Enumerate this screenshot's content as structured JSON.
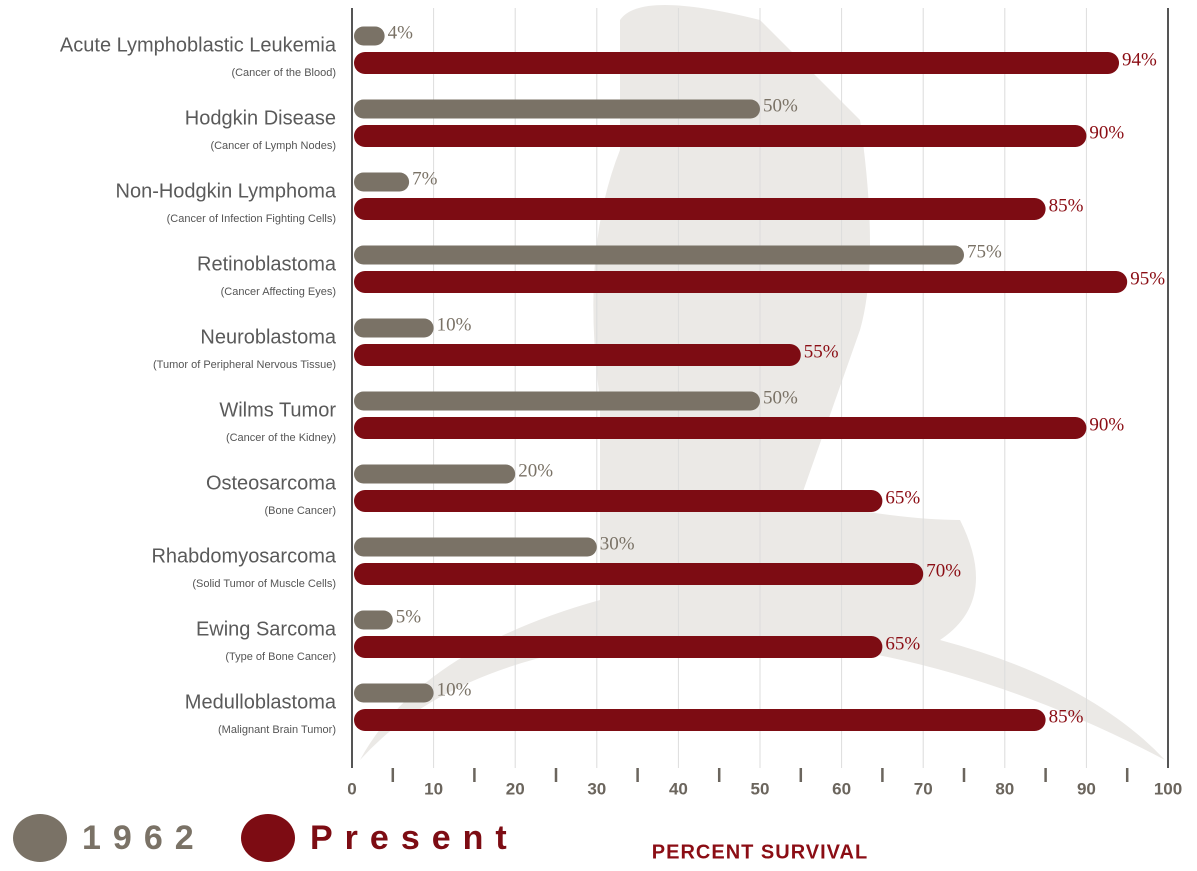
{
  "chart_data": {
    "type": "bar",
    "orientation": "horizontal",
    "xlabel": "PERCENT SURVIVAL",
    "categories": [
      "Acute Lymphoblastic Leukemia",
      "Hodgkin Disease",
      "Non-Hodgkin Lymphoma",
      "Retinoblastoma",
      "Neuroblastoma",
      "Wilms Tumor",
      "Osteosarcoma",
      "Rhabdomyosarcoma",
      "Ewing Sarcoma",
      "Medulloblastoma"
    ],
    "subtitles": [
      "(Cancer of the Blood)",
      "(Cancer of Lymph Nodes)",
      "(Cancer of Infection Fighting Cells)",
      "(Cancer Affecting Eyes)",
      "(Tumor of Peripheral Nervous Tissue)",
      "(Cancer of the Kidney)",
      "(Bone Cancer)",
      "(Solid Tumor of Muscle Cells)",
      "(Type of Bone Cancer)",
      "(Malignant Brain Tumor)"
    ],
    "series": [
      {
        "name": "1962",
        "color": "#7a7266",
        "values": [
          4,
          50,
          7,
          75,
          10,
          50,
          20,
          30,
          5,
          10
        ],
        "value_labels": [
          "4%",
          "50%",
          "7%",
          "75%",
          "10%",
          "50%",
          "20%",
          "30%",
          "5%",
          "10%"
        ]
      },
      {
        "name": "Present",
        "color": "#7d0c13",
        "values": [
          94,
          90,
          85,
          95,
          55,
          90,
          65,
          70,
          65,
          85
        ],
        "value_labels": [
          "94%",
          "90%",
          "85%",
          "95%",
          "55%",
          "90%",
          "65%",
          "70%",
          "65%",
          "85%"
        ]
      }
    ],
    "xlim": [
      0,
      100
    ],
    "xticks": [
      0,
      10,
      20,
      30,
      40,
      50,
      60,
      70,
      80,
      90,
      100
    ],
    "xminorticks": [
      5,
      15,
      25,
      35,
      45,
      55,
      65,
      75,
      85,
      95
    ],
    "grid": true,
    "legend": "bottom-left"
  }
}
